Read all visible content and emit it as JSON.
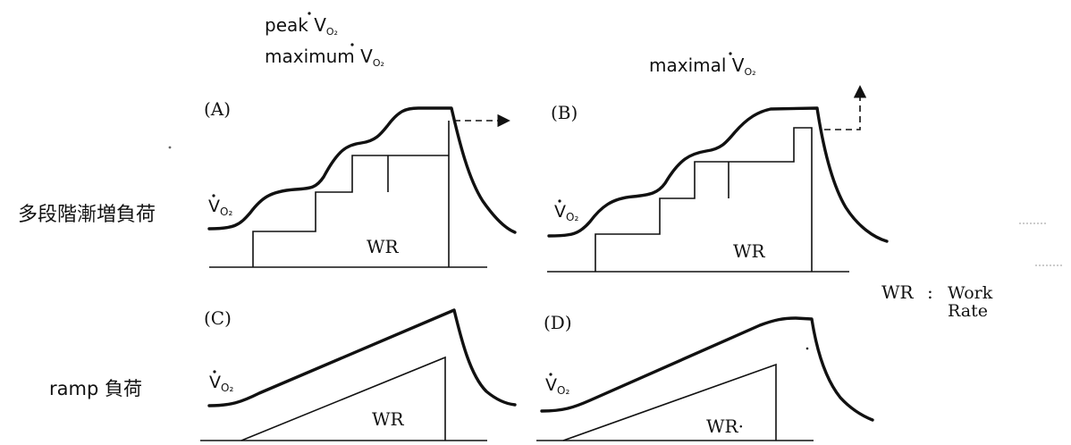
{
  "header": {
    "left_line1_prefix": "peak ",
    "left_line2_prefix": "maximum ",
    "right_prefix": "maximal ",
    "vo2_symbol": "V",
    "vo2_subscript": "O₂"
  },
  "rows": {
    "stepwise": "多段階漸増負荷",
    "ramp": "ramp 負荷"
  },
  "panels": {
    "a": "(A)",
    "b": "(B)",
    "c": "(C)",
    "d": "(D)"
  },
  "work_rate_label": "WR",
  "work_rate_label_d": "WR·",
  "legend": {
    "abbr": "WR",
    "sep": ":",
    "line1": "Work",
    "line2": "Rate"
  }
}
